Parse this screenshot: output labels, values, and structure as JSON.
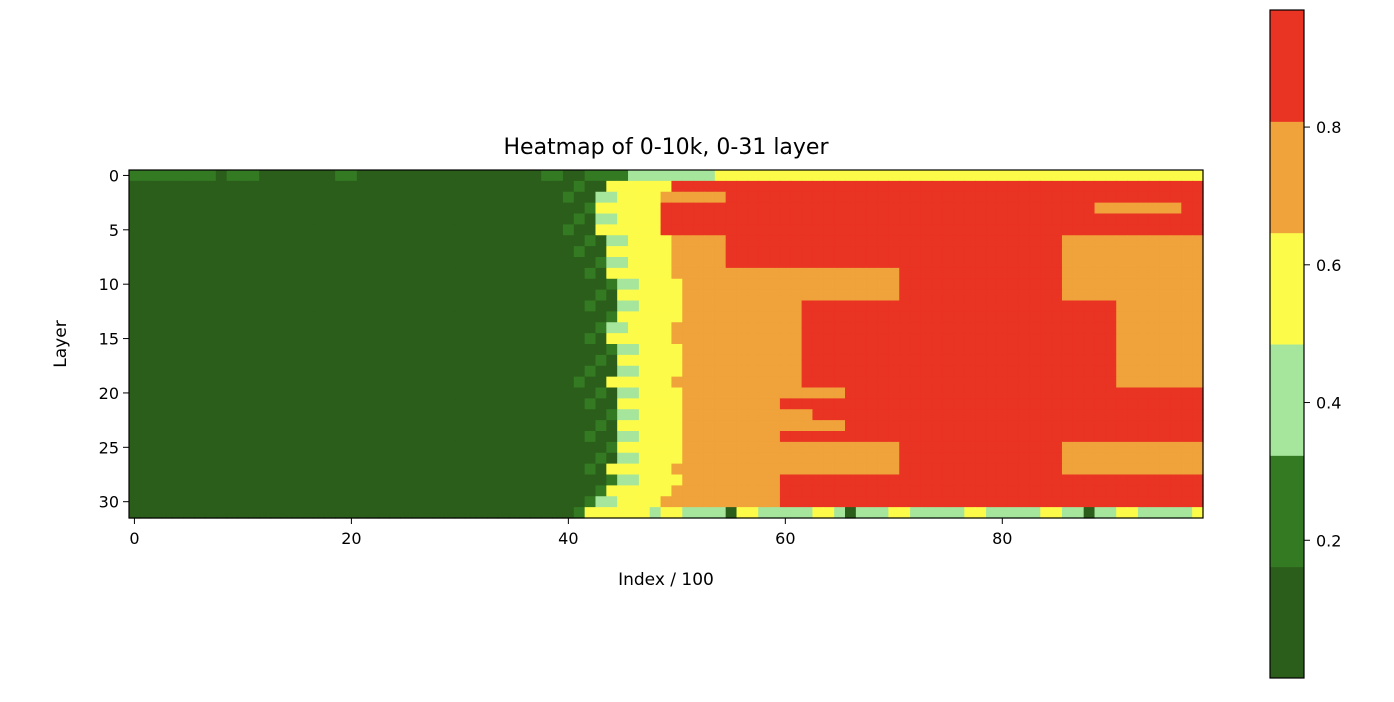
{
  "chart_data": {
    "type": "heatmap",
    "title": "Heatmap of 0-10k, 0-31 layer",
    "xlabel": "Index / 100",
    "ylabel": "Layer",
    "n_cols": 99,
    "n_rows": 32,
    "x_ticks": [
      0,
      20,
      40,
      60,
      80
    ],
    "y_ticks": [
      0,
      5,
      10,
      15,
      20,
      25,
      30
    ],
    "colorbar": {
      "min": 0.0,
      "max": 0.97,
      "ticks": [
        0.2,
        0.4,
        0.6,
        0.8
      ],
      "colors": [
        "#2b5e1a",
        "#347a23",
        "#a6e59c",
        "#fdfb49",
        "#f0a23b",
        "#e93323"
      ]
    },
    "row_transitions": [
      {
        "row": 0,
        "transition": 46,
        "pattern": "light-then-yellow"
      },
      {
        "row": 1,
        "transition": 44,
        "pattern": "yellow-red"
      },
      {
        "row": 2,
        "transition": 43,
        "pattern": "orange-red"
      },
      {
        "row": 3,
        "transition": 43,
        "pattern": "red"
      },
      {
        "row": 4,
        "transition": 43,
        "pattern": "red"
      },
      {
        "row": 5,
        "transition": 43,
        "pattern": "red"
      },
      {
        "row": 6,
        "transition": 44,
        "pattern": "orange-red"
      },
      {
        "row": 7,
        "transition": 44,
        "pattern": "orange-red"
      },
      {
        "row": 8,
        "transition": 44,
        "pattern": "orange-red"
      },
      {
        "row": 9,
        "transition": 44,
        "pattern": "orange"
      },
      {
        "row": 10,
        "transition": 45,
        "pattern": "orange"
      },
      {
        "row": 11,
        "transition": 45,
        "pattern": "orange"
      },
      {
        "row": 12,
        "transition": 45,
        "pattern": "orange-red"
      },
      {
        "row": 13,
        "transition": 45,
        "pattern": "orange-red"
      },
      {
        "row": 14,
        "transition": 44,
        "pattern": "orange-red"
      },
      {
        "row": 15,
        "transition": 44,
        "pattern": "orange-red"
      },
      {
        "row": 16,
        "transition": 45,
        "pattern": "orange-red"
      },
      {
        "row": 17,
        "transition": 45,
        "pattern": "orange-red"
      },
      {
        "row": 18,
        "transition": 45,
        "pattern": "orange-red"
      },
      {
        "row": 19,
        "transition": 44,
        "pattern": "orange-red"
      },
      {
        "row": 20,
        "transition": 45,
        "pattern": "orange-red"
      },
      {
        "row": 21,
        "transition": 45,
        "pattern": "orange-red"
      },
      {
        "row": 22,
        "transition": 45,
        "pattern": "orange-red"
      },
      {
        "row": 23,
        "transition": 45,
        "pattern": "orange-red"
      },
      {
        "row": 24,
        "transition": 45,
        "pattern": "orange-red"
      },
      {
        "row": 25,
        "transition": 45,
        "pattern": "orange"
      },
      {
        "row": 26,
        "transition": 45,
        "pattern": "orange"
      },
      {
        "row": 27,
        "transition": 44,
        "pattern": "orange"
      },
      {
        "row": 28,
        "transition": 45,
        "pattern": "orange-red"
      },
      {
        "row": 29,
        "transition": 44,
        "pattern": "orange-red"
      },
      {
        "row": 30,
        "transition": 43,
        "pattern": "orange-red"
      },
      {
        "row": 31,
        "transition": 42,
        "pattern": "light"
      }
    ]
  }
}
